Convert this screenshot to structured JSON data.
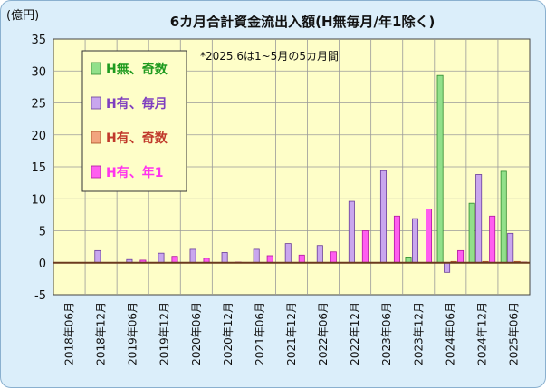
{
  "chart_data": {
    "type": "bar",
    "title": "6カ月合計資金流出入額(H無毎月/年1除く)",
    "unit_label": "(億円)",
    "annotation": "*2025.6は1~5月の5カ月間",
    "ylim": [
      -5,
      35
    ],
    "yticks": [
      -5,
      0,
      5,
      10,
      15,
      20,
      25,
      30,
      35
    ],
    "grid": true,
    "legend_position": "upper-left",
    "categories": [
      "2018年06月",
      "2018年12月",
      "2019年06月",
      "2019年12月",
      "2020年06月",
      "2020年12月",
      "2021年06月",
      "2021年12月",
      "2022年06月",
      "2022年12月",
      "2023年06月",
      "2023年12月",
      "2024年06月",
      "2024年12月",
      "2025年06月"
    ],
    "series": [
      {
        "name": "H無、奇数",
        "color": "#92e08a",
        "stroke": "#2f8a2f",
        "label_color": "#1f9a1f",
        "values": [
          0,
          0,
          0,
          0,
          0,
          0,
          0,
          0,
          0,
          0,
          0,
          0.9,
          29.3,
          9.3,
          14.3
        ]
      },
      {
        "name": "H有、毎月",
        "color": "#c9a6ee",
        "stroke": "#6a3d9a",
        "label_color": "#7f3fbf",
        "values": [
          0,
          1.9,
          0.5,
          1.5,
          2.1,
          1.6,
          2.1,
          3.0,
          2.7,
          9.6,
          14.4,
          6.9,
          -1.5,
          13.8,
          4.6
        ]
      },
      {
        "name": "H有、奇数",
        "color": "#f2a57f",
        "stroke": "#a84b20",
        "label_color": "#c0392b",
        "values": [
          0,
          0,
          0,
          0,
          0,
          0,
          0,
          0,
          0,
          0,
          0,
          0,
          0.2,
          0.2,
          0.2
        ]
      },
      {
        "name": "H有、年1",
        "color": "#ff5ef0",
        "stroke": "#b0169f",
        "label_color": "#ff33ee",
        "values": [
          0,
          0,
          0.4,
          1.0,
          0.7,
          0.1,
          1.1,
          1.2,
          1.7,
          5.0,
          7.3,
          8.4,
          1.9,
          7.3,
          0.1
        ]
      }
    ]
  }
}
